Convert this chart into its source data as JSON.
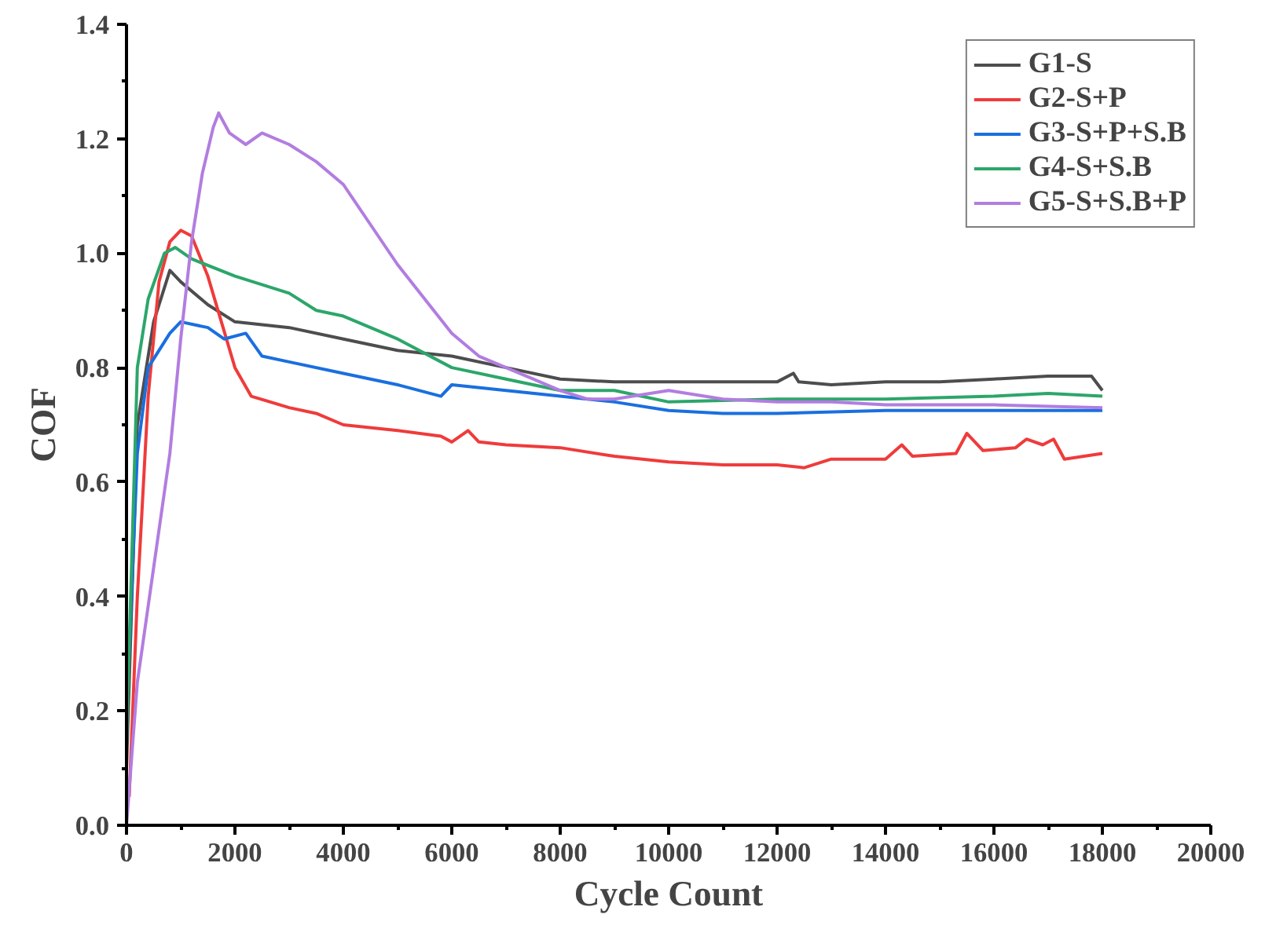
{
  "chart_data": {
    "type": "line",
    "xlabel": "Cycle Count",
    "ylabel": "COF",
    "xlim": [
      0,
      20000
    ],
    "ylim": [
      0,
      1.4
    ],
    "xticks": [
      0,
      2000,
      4000,
      6000,
      8000,
      10000,
      12000,
      14000,
      16000,
      18000,
      20000
    ],
    "yticks": [
      {
        "value": 0,
        "label": "0.0"
      },
      0.2,
      0.4,
      0.6,
      0.8,
      {
        "value": 1,
        "label": "1.0"
      },
      1.2,
      1.4
    ],
    "legend": "top right",
    "grid": false,
    "series": [
      {
        "name": "G1-S",
        "color": "#4d4d4d",
        "x": [
          0,
          200,
          500,
          800,
          1000,
          1500,
          2000,
          3000,
          4000,
          5000,
          6000,
          7000,
          8000,
          9000,
          10000,
          11000,
          12000,
          12300,
          12400,
          13000,
          14000,
          15000,
          16000,
          17000,
          17800,
          18000
        ],
        "values": [
          0.1,
          0.7,
          0.88,
          0.97,
          0.95,
          0.91,
          0.88,
          0.87,
          0.85,
          0.83,
          0.82,
          0.8,
          0.78,
          0.775,
          0.775,
          0.775,
          0.775,
          0.79,
          0.775,
          0.77,
          0.775,
          0.775,
          0.78,
          0.785,
          0.785,
          0.76
        ]
      },
      {
        "name": "G2-S+P",
        "color": "#ef3b3b",
        "x": [
          50,
          200,
          400,
          600,
          800,
          1000,
          1200,
          1500,
          2000,
          2300,
          3000,
          3500,
          4000,
          5000,
          5800,
          6000,
          6300,
          6500,
          7000,
          8000,
          9000,
          10000,
          11000,
          12000,
          12500,
          13000,
          14000,
          14300,
          14500,
          15300,
          15500,
          15800,
          16400,
          16600,
          16900,
          17100,
          17300,
          18000
        ],
        "values": [
          0.05,
          0.4,
          0.75,
          0.95,
          1.02,
          1.04,
          1.03,
          0.96,
          0.8,
          0.75,
          0.73,
          0.72,
          0.7,
          0.69,
          0.68,
          0.67,
          0.69,
          0.67,
          0.665,
          0.66,
          0.645,
          0.635,
          0.63,
          0.63,
          0.625,
          0.64,
          0.64,
          0.665,
          0.645,
          0.65,
          0.685,
          0.655,
          0.66,
          0.675,
          0.665,
          0.675,
          0.64,
          0.65
        ]
      },
      {
        "name": "G3-S+P+S.B",
        "color": "#1a6fdf",
        "x": [
          50,
          200,
          400,
          800,
          1000,
          1500,
          1800,
          2200,
          2500,
          3000,
          4000,
          5000,
          5800,
          6000,
          7000,
          8000,
          9000,
          10000,
          11000,
          12000,
          14000,
          16000,
          18000
        ],
        "values": [
          0.3,
          0.65,
          0.8,
          0.86,
          0.88,
          0.87,
          0.85,
          0.86,
          0.82,
          0.81,
          0.79,
          0.77,
          0.75,
          0.77,
          0.76,
          0.75,
          0.74,
          0.725,
          0.72,
          0.72,
          0.725,
          0.725,
          0.725
        ]
      },
      {
        "name": "G4-S+S.B",
        "color": "#2ca66a",
        "x": [
          0,
          200,
          400,
          700,
          900,
          1200,
          2000,
          3000,
          3500,
          4000,
          5000,
          6000,
          7000,
          8000,
          9000,
          10000,
          12000,
          14000,
          16000,
          17000,
          18000
        ],
        "values": [
          0.15,
          0.8,
          0.92,
          1.0,
          1.01,
          0.99,
          0.96,
          0.93,
          0.9,
          0.89,
          0.85,
          0.8,
          0.78,
          0.76,
          0.76,
          0.74,
          0.745,
          0.745,
          0.75,
          0.755,
          0.75
        ]
      },
      {
        "name": "G5-S+S.B+P",
        "color": "#b27de0",
        "x": [
          0,
          200,
          500,
          800,
          1000,
          1200,
          1400,
          1600,
          1700,
          1900,
          2200,
          2500,
          3000,
          3500,
          4000,
          4500,
          5000,
          5500,
          6000,
          6500,
          7000,
          7500,
          8000,
          8500,
          9000,
          10000,
          11000,
          12000,
          13000,
          14000,
          16000,
          18000
        ],
        "values": [
          0.0,
          0.25,
          0.45,
          0.65,
          0.85,
          1.02,
          1.14,
          1.22,
          1.245,
          1.21,
          1.19,
          1.21,
          1.19,
          1.16,
          1.12,
          1.05,
          0.98,
          0.92,
          0.86,
          0.82,
          0.8,
          0.78,
          0.76,
          0.745,
          0.745,
          0.76,
          0.745,
          0.74,
          0.74,
          0.735,
          0.735,
          0.73
        ]
      }
    ]
  }
}
